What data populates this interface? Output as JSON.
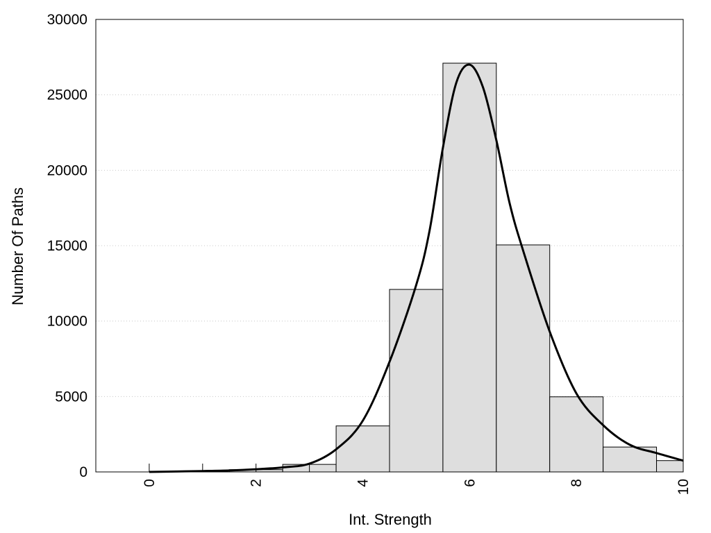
{
  "chart_data": {
    "type": "bar",
    "title": "",
    "xlabel": "Int. Strength",
    "ylabel": "Number Of Paths",
    "xlim": [
      -1,
      10
    ],
    "ylim": [
      0,
      30000
    ],
    "x_ticks": [
      0,
      2,
      4,
      6,
      8,
      10
    ],
    "x_tick_labels": [
      "0",
      "2",
      "4",
      "6",
      "8",
      "10"
    ],
    "y_ticks": [
      0,
      5000,
      10000,
      15000,
      20000,
      25000,
      30000
    ],
    "y_tick_labels": [
      "0",
      "5000",
      "10000",
      "15000",
      "20000",
      "25000",
      "30000"
    ],
    "grid": "horizontal-dotted",
    "bar_color": "#dedede",
    "line_color": "#000000",
    "bins": [
      {
        "center": 0,
        "value": 0
      },
      {
        "center": 1,
        "value": 0
      },
      {
        "center": 2,
        "value": 150
      },
      {
        "center": 3,
        "value": 500
      },
      {
        "center": 4,
        "value": 3050
      },
      {
        "center": 5,
        "value": 12100
      },
      {
        "center": 6,
        "value": 27100
      },
      {
        "center": 7,
        "value": 15050
      },
      {
        "center": 8,
        "value": 4980
      },
      {
        "center": 9,
        "value": 1650
      },
      {
        "center": 10,
        "value": 750
      }
    ],
    "bin_width": 1,
    "density_curve": {
      "x": [
        0,
        0.5,
        1,
        1.5,
        2,
        2.5,
        3,
        3.5,
        4,
        4.5,
        5,
        5.25,
        5.5,
        5.75,
        6,
        6.25,
        6.5,
        6.75,
        7,
        7.5,
        8,
        8.5,
        9,
        9.5,
        10
      ],
      "y": [
        0,
        30,
        60,
        100,
        180,
        300,
        550,
        1500,
        3400,
        7300,
        12400,
        16000,
        21500,
        25800,
        27000,
        25500,
        22000,
        17800,
        14700,
        9300,
        5200,
        3100,
        1800,
        1250,
        750
      ]
    }
  }
}
